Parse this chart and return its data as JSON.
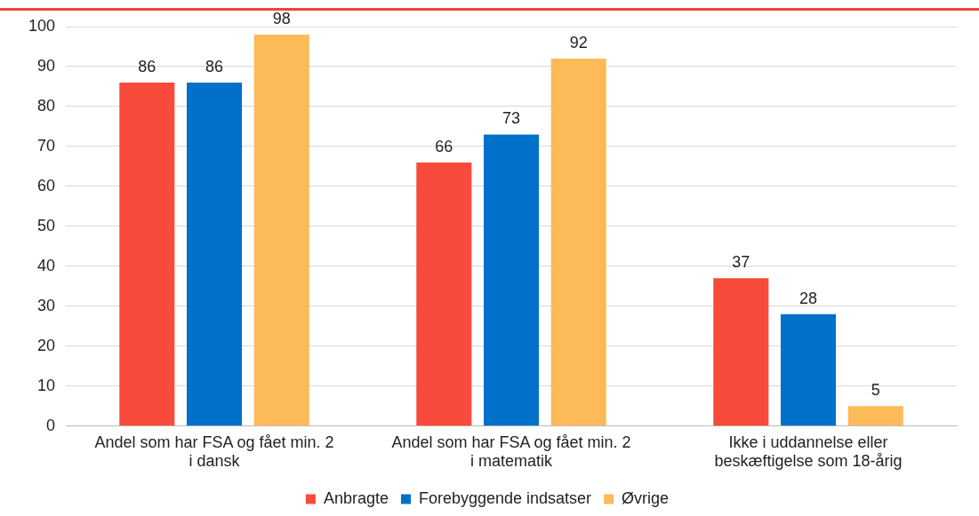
{
  "chart_data": {
    "type": "bar",
    "categories": [
      "Andel som har FSA og fået min. 2 i dansk",
      "Andel som har FSA og fået min. 2 i matematik",
      "Ikke i uddannelse eller beskæftigelse som 18-årig"
    ],
    "series": [
      {
        "name": "Anbragte",
        "color": "#f84b3c",
        "values": [
          86,
          66,
          37
        ]
      },
      {
        "name": "Forebyggende indsatser",
        "color": "#0070c9",
        "values": [
          86,
          73,
          28
        ]
      },
      {
        "name": "Øvrige",
        "color": "#fdba59",
        "values": [
          98,
          92,
          5
        ]
      }
    ],
    "ylim": [
      0,
      100
    ],
    "yticks": [
      0,
      10,
      20,
      30,
      40,
      50,
      60,
      70,
      80,
      90,
      100
    ],
    "grid": "y",
    "legend": "bottom",
    "data_labels": true
  }
}
